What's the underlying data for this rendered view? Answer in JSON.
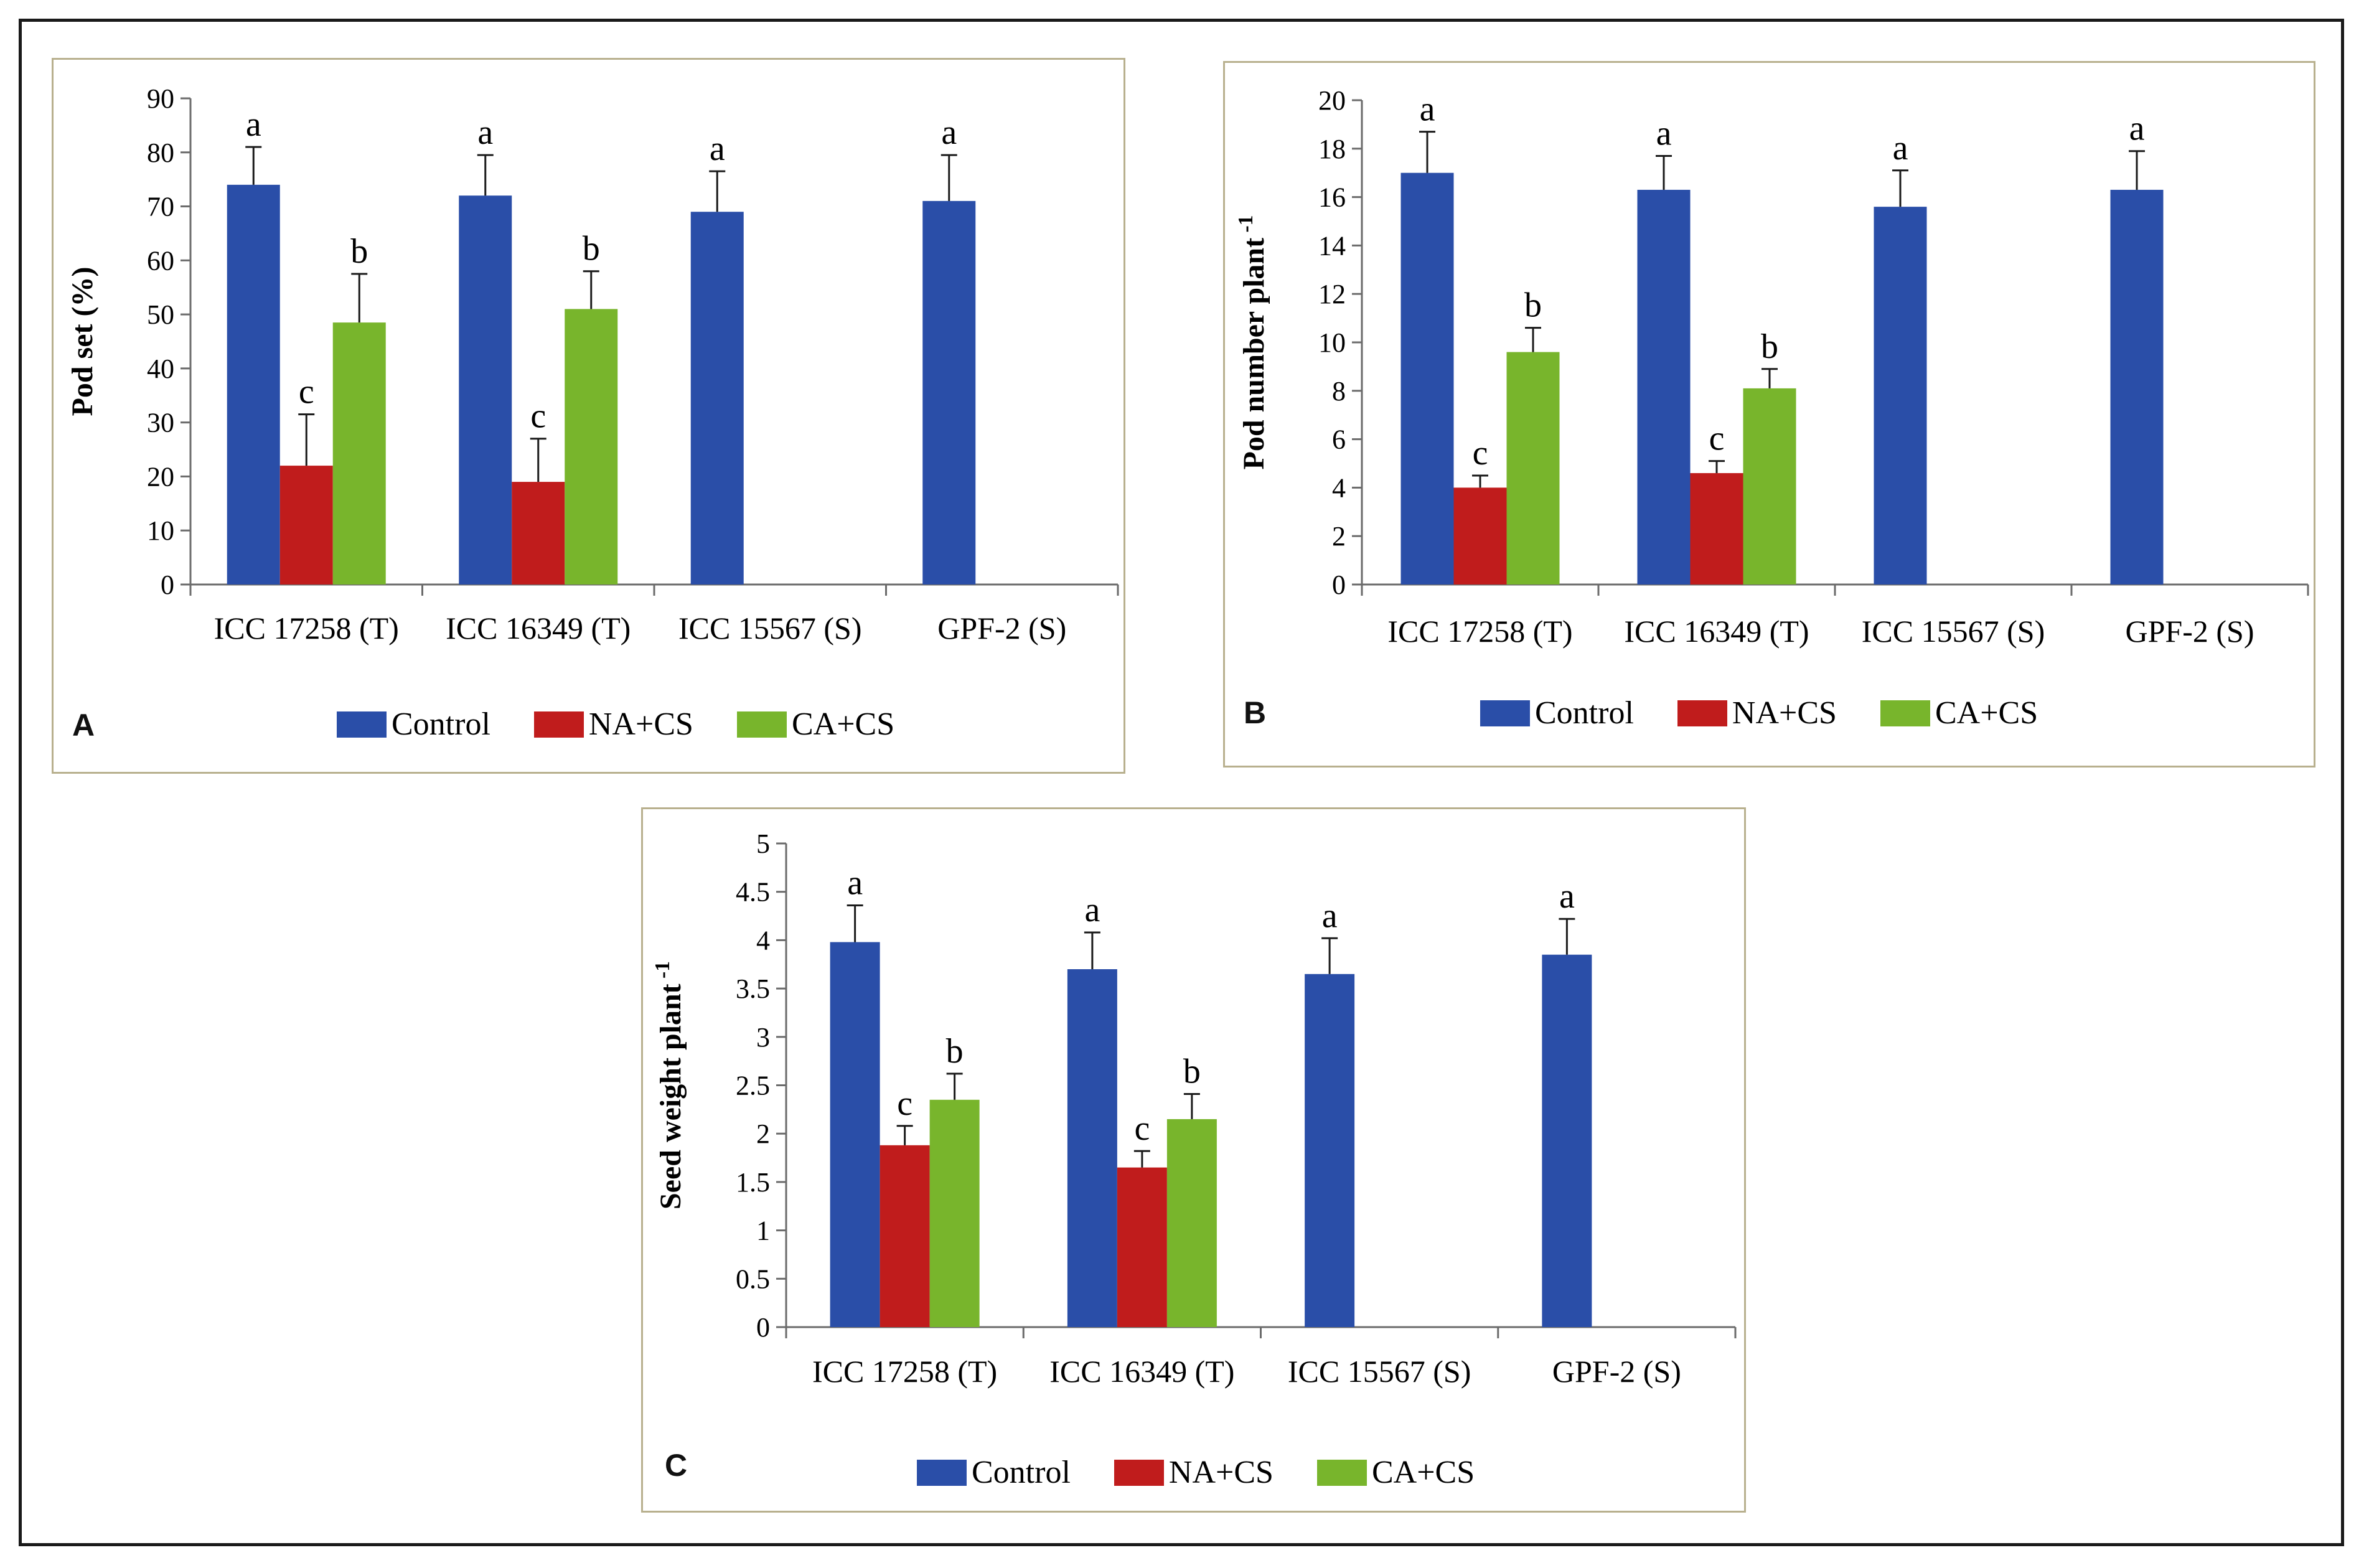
{
  "colors": {
    "control": "#2a4ea8",
    "na_cs": "#c01c1c",
    "ca_cs": "#78b52c",
    "axis": "#6b6b6b",
    "frame": "#b8b08e"
  },
  "legend": [
    {
      "key": "control",
      "label": "Control"
    },
    {
      "key": "na_cs",
      "label": "NA+CS"
    },
    {
      "key": "ca_cs",
      "label": "CA+CS"
    }
  ],
  "chart_data": [
    {
      "panel": "A",
      "type": "bar",
      "ylabel": "Pod set (%)",
      "ylabel_sup": "",
      "ylim": [
        0,
        90
      ],
      "yticks": [
        0,
        10,
        20,
        30,
        40,
        50,
        60,
        70,
        80,
        90
      ],
      "ytick_labels": [
        "0",
        "10",
        "20",
        "30",
        "40",
        "50",
        "60",
        "70",
        "80",
        "90"
      ],
      "categories": [
        "ICC 17258 (T)",
        "ICC 16349 (T)",
        "ICC 15567 (S)",
        "GPF-2 (S)"
      ],
      "series": [
        {
          "name": "Control",
          "key": "control",
          "values": [
            74,
            72,
            69,
            71
          ],
          "errors": [
            7,
            7.5,
            7.5,
            8.5
          ],
          "letters": [
            "a",
            "a",
            "a",
            "a"
          ]
        },
        {
          "name": "NA+CS",
          "key": "na_cs",
          "values": [
            22,
            19,
            null,
            null
          ],
          "errors": [
            9.5,
            8,
            null,
            null
          ],
          "letters": [
            "c",
            "c",
            null,
            null
          ]
        },
        {
          "name": "CA+CS",
          "key": "ca_cs",
          "values": [
            48.5,
            51,
            null,
            null
          ],
          "errors": [
            9,
            7,
            null,
            null
          ],
          "letters": [
            "b",
            "b",
            null,
            null
          ]
        }
      ]
    },
    {
      "panel": "B",
      "type": "bar",
      "ylabel": "Pod number plant",
      "ylabel_sup": "-1",
      "ylim": [
        0,
        20
      ],
      "yticks": [
        0,
        2,
        4,
        6,
        8,
        10,
        12,
        14,
        16,
        18,
        20
      ],
      "ytick_labels": [
        "0",
        "2",
        "4",
        "6",
        "8",
        "10",
        "12",
        "14",
        "16",
        "18",
        "20"
      ],
      "categories": [
        "ICC 17258 (T)",
        "ICC 16349 (T)",
        "ICC 15567 (S)",
        "GPF-2 (S)"
      ],
      "series": [
        {
          "name": "Control",
          "key": "control",
          "values": [
            17,
            16.3,
            15.6,
            16.3
          ],
          "errors": [
            1.7,
            1.4,
            1.5,
            1.6
          ],
          "letters": [
            "a",
            "a",
            "a",
            "a"
          ]
        },
        {
          "name": "NA+CS",
          "key": "na_cs",
          "values": [
            4,
            4.6,
            null,
            null
          ],
          "errors": [
            0.5,
            0.5,
            null,
            null
          ],
          "letters": [
            "c",
            "c",
            null,
            null
          ]
        },
        {
          "name": "CA+CS",
          "key": "ca_cs",
          "values": [
            9.6,
            8.1,
            null,
            null
          ],
          "errors": [
            1,
            0.8,
            null,
            null
          ],
          "letters": [
            "b",
            "b",
            null,
            null
          ]
        }
      ]
    },
    {
      "panel": "C",
      "type": "bar",
      "ylabel": "Seed weight plant",
      "ylabel_sup": "-1",
      "ylim": [
        0,
        5
      ],
      "yticks": [
        0,
        0.5,
        1,
        1.5,
        2,
        2.5,
        3,
        3.5,
        4,
        4.5,
        5
      ],
      "ytick_labels": [
        "0",
        "0.5",
        "1",
        "1.5",
        "2",
        "2.5",
        "3",
        "3.5",
        "4",
        "4.5",
        "5"
      ],
      "categories": [
        "ICC 17258 (T)",
        "ICC 16349 (T)",
        "ICC 15567 (S)",
        "GPF-2 (S)"
      ],
      "series": [
        {
          "name": "Control",
          "key": "control",
          "values": [
            3.98,
            3.7,
            3.65,
            3.85
          ],
          "errors": [
            0.38,
            0.38,
            0.37,
            0.37
          ],
          "letters": [
            "a",
            "a",
            "a",
            "a"
          ]
        },
        {
          "name": "NA+CS",
          "key": "na_cs",
          "values": [
            1.88,
            1.65,
            null,
            null
          ],
          "errors": [
            0.2,
            0.17,
            null,
            null
          ],
          "letters": [
            "c",
            "c",
            null,
            null
          ]
        },
        {
          "name": "CA+CS",
          "key": "ca_cs",
          "values": [
            2.35,
            2.15,
            null,
            null
          ],
          "errors": [
            0.27,
            0.26,
            null,
            null
          ],
          "letters": [
            "b",
            "b",
            null,
            null
          ]
        }
      ]
    }
  ]
}
